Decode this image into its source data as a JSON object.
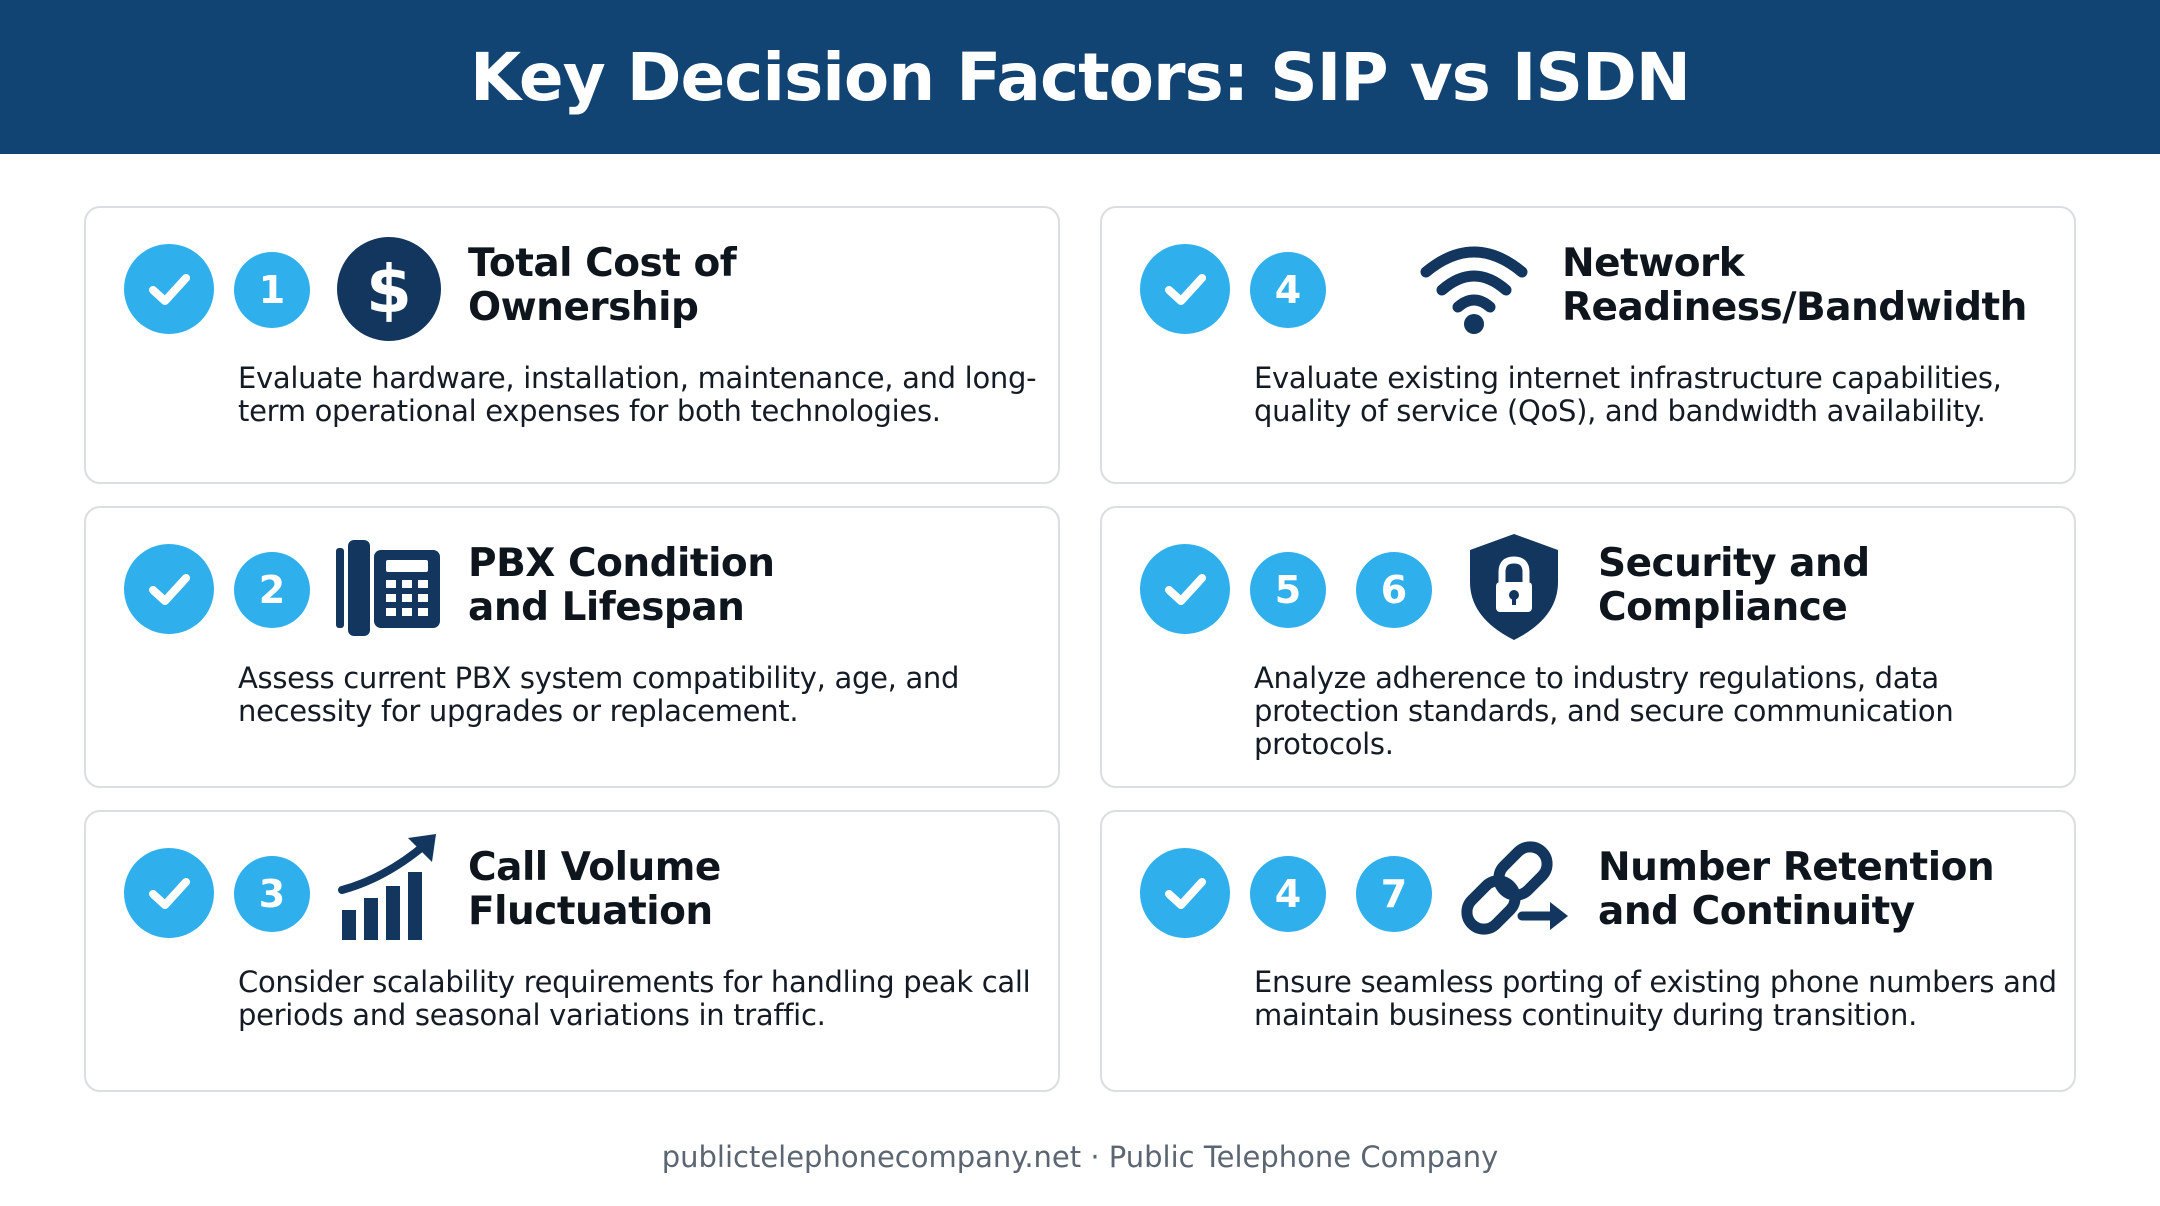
{
  "header": {
    "title": "Key Decision Factors: SIP vs ISDN"
  },
  "colors": {
    "header_bg": "#124473",
    "badge": "#2fb0ec",
    "icon": "#12365e"
  },
  "cards": [
    {
      "numbers": [
        "1"
      ],
      "icon": "dollar-icon",
      "title_line1": "Total Cost of",
      "title_line2": "Ownership",
      "desc": "Evaluate hardware, installation, maintenance, and long-term operational expenses for both technologies."
    },
    {
      "numbers": [
        "4"
      ],
      "icon": "wifi-icon",
      "title_line1": "Network",
      "title_line2": "Readiness/Bandwidth",
      "desc": "Evaluate existing internet infrastructure capabilities, quality of service (QoS), and bandwidth availability."
    },
    {
      "numbers": [
        "2"
      ],
      "icon": "desk-phone-icon",
      "title_line1": "PBX Condition",
      "title_line2": "and Lifespan",
      "desc": "Assess current PBX system compatibility, age, and necessity for upgrades or replacement."
    },
    {
      "numbers": [
        "5",
        "6"
      ],
      "icon": "shield-lock-icon",
      "title_line1": "Security and",
      "title_line2": "Compliance",
      "desc": "Analyze adherence to industry regulations, data protection standards, and secure communication protocols."
    },
    {
      "numbers": [
        "3"
      ],
      "icon": "growth-chart-icon",
      "title_line1": "Call Volume",
      "title_line2": "Fluctuation",
      "desc": "Consider scalability requirements for handling peak call periods and seasonal variations in traffic."
    },
    {
      "numbers": [
        "4",
        "7"
      ],
      "icon": "link-arrow-icon",
      "title_line1": "Number Retention",
      "title_line2": "and Continuity",
      "desc": "Ensure seamless porting of existing phone numbers and maintain business continuity during transition."
    }
  ],
  "footer": {
    "text": "publictelephonecompany.net · Public Telephone Company"
  }
}
